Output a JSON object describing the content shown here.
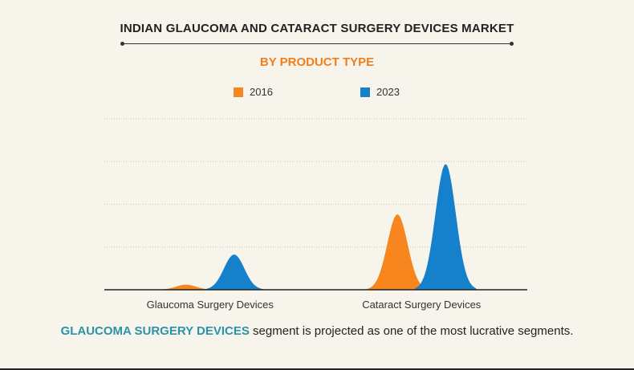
{
  "header": {
    "title": "INDIAN GLAUCOMA AND CATARACT SURGERY DEVICES MARKET",
    "subtitle": "BY PRODUCT TYPE"
  },
  "colors": {
    "series_2016": "#f7861e",
    "series_2023": "#1580cc",
    "accent": "#f07e1d",
    "highlight": "#2b93a8"
  },
  "chart_data": {
    "type": "area",
    "title": "",
    "xlabel": "",
    "ylabel": "",
    "categories": [
      "Glaucoma Surgery Devices",
      "Cataract Surgery Devices"
    ],
    "series": [
      {
        "name": "2016",
        "values": [
          0.5,
          7.5
        ]
      },
      {
        "name": "2023",
        "values": [
          3.5,
          12.5
        ]
      }
    ],
    "ylim": [
      0,
      17
    ],
    "grid": true,
    "legend_position": "top-center"
  },
  "footer": {
    "highlight": "GLAUCOMA SURGERY DEVICES",
    "text": " segment is projected as one of the most lucrative segments."
  }
}
